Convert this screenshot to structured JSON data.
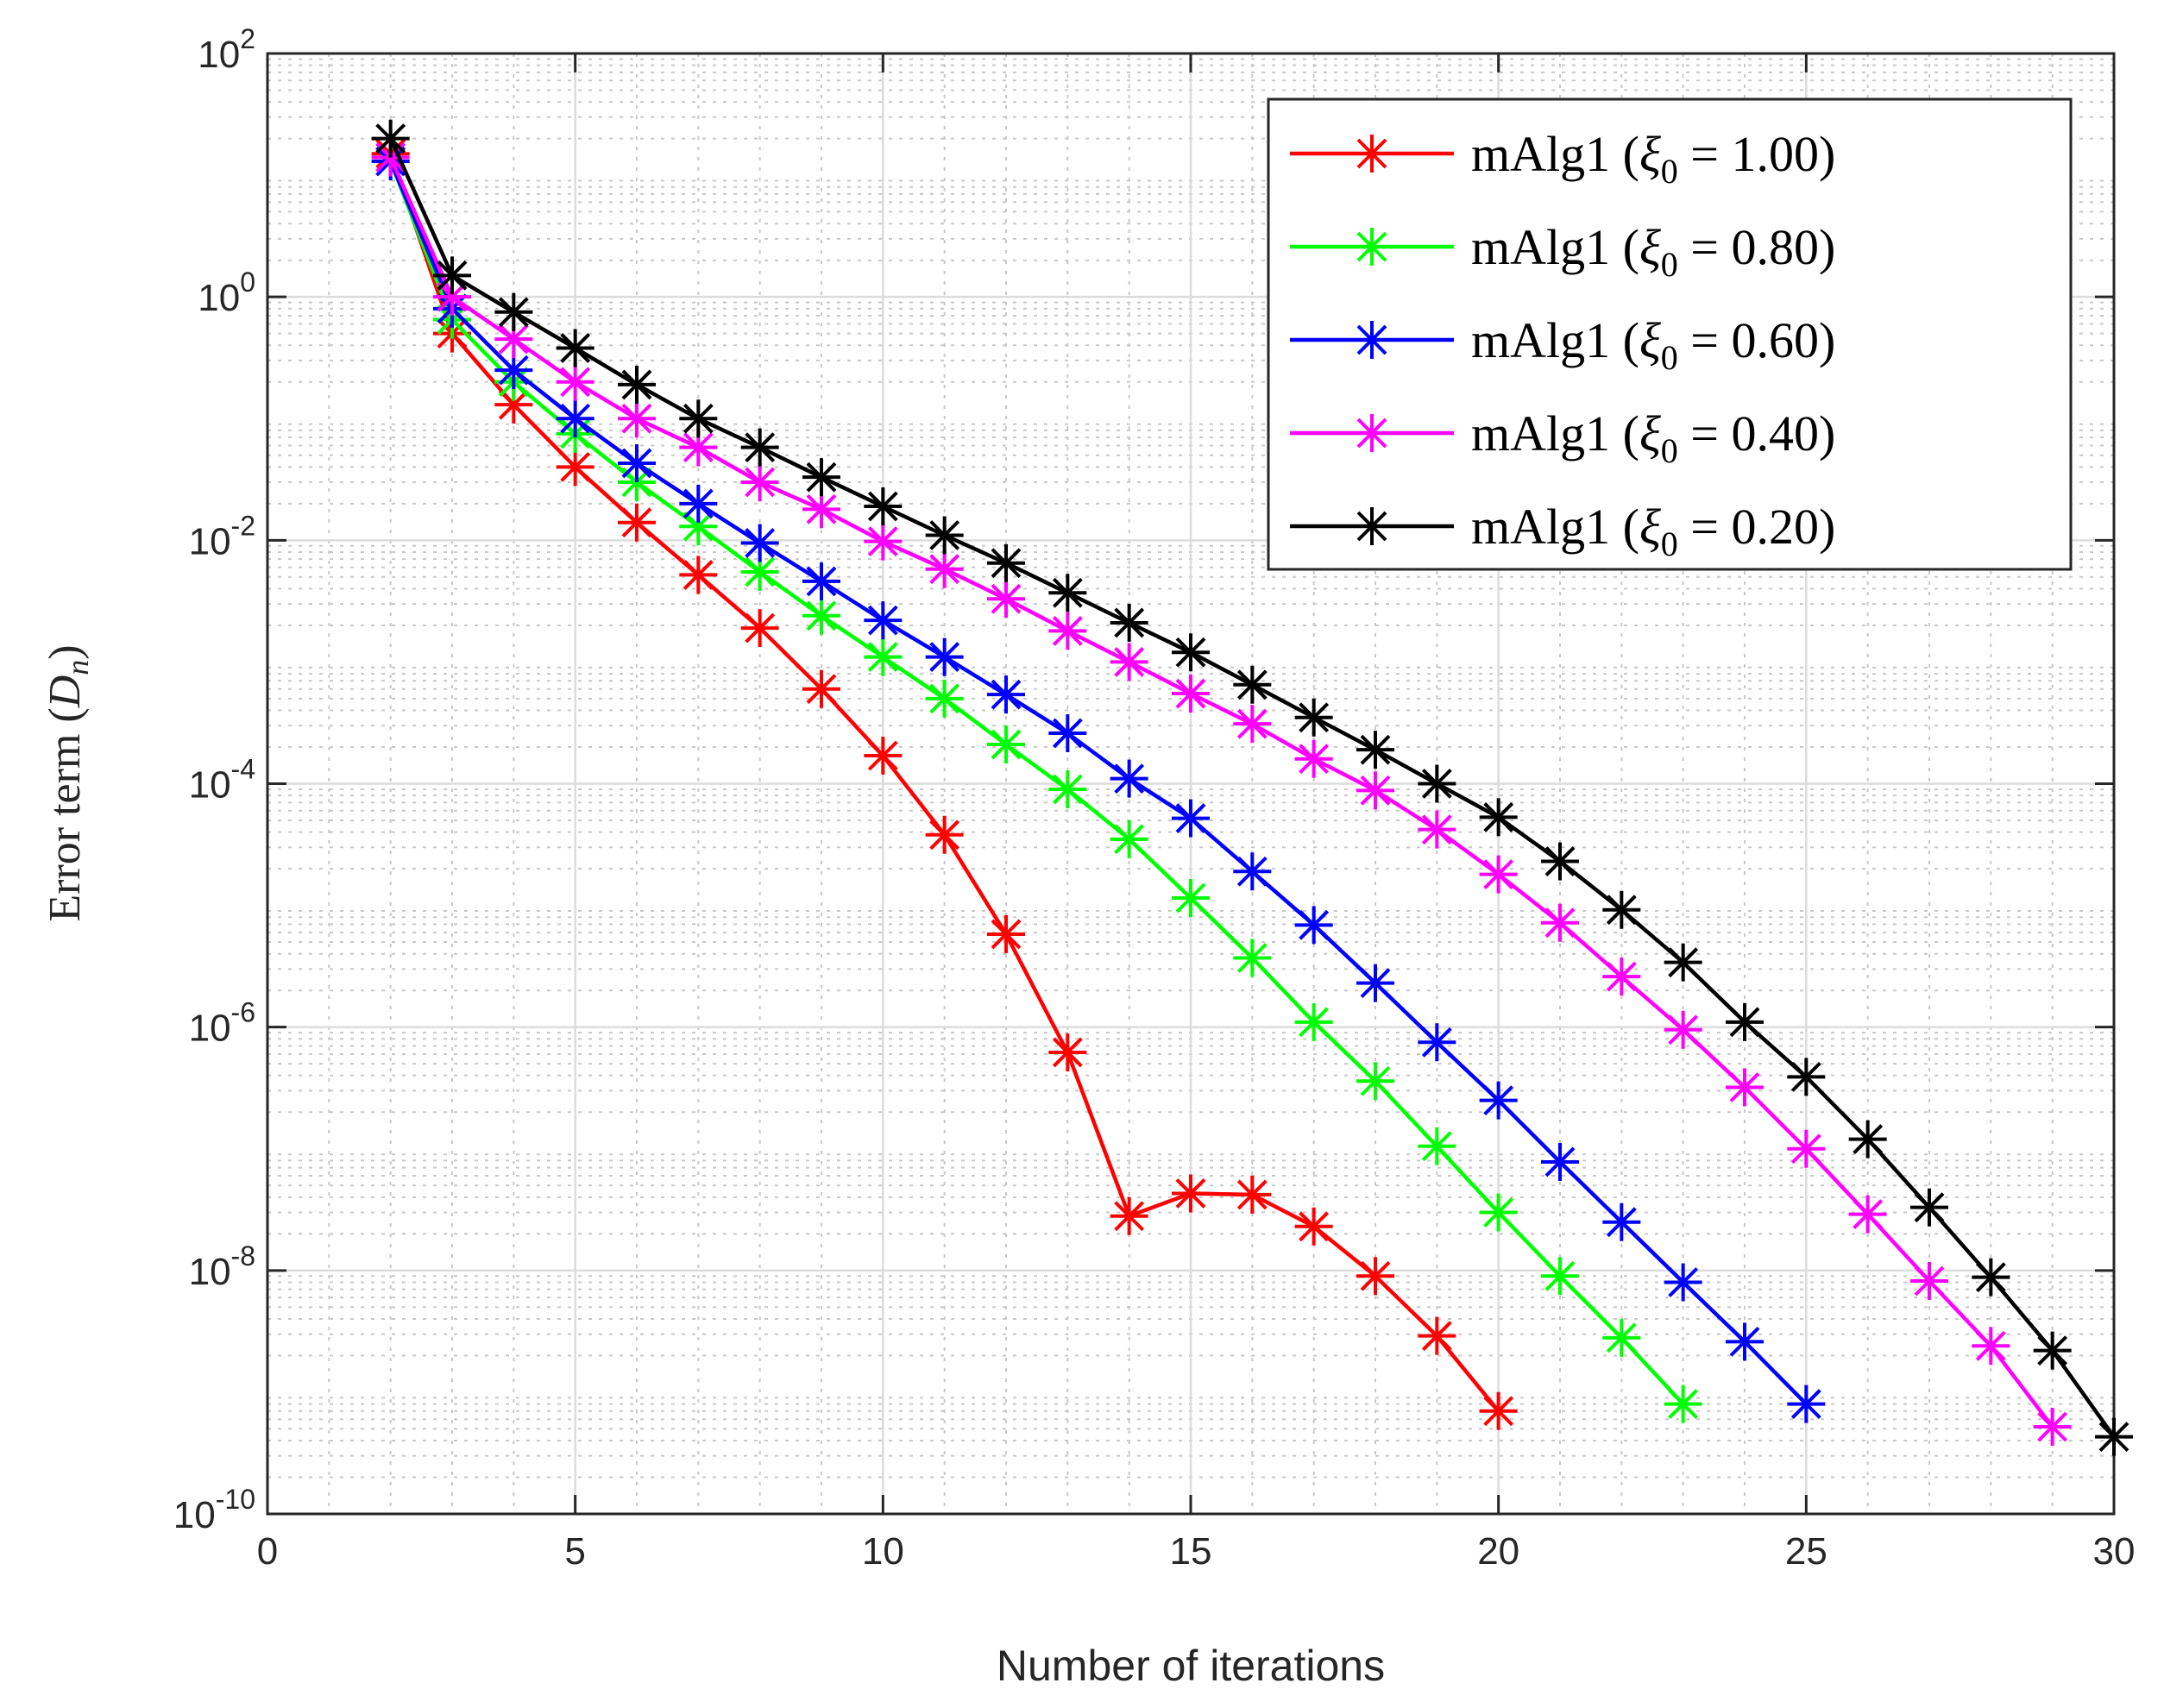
{
  "chart_data": {
    "type": "line",
    "title": "",
    "xlabel": "Number of iterations",
    "ylabel_text": "Error term",
    "ylabel_var": "D",
    "ylabel_sub": "n",
    "xlim": [
      0,
      30
    ],
    "ylim": [
      1e-10,
      100
    ],
    "yscale": "log",
    "grid": true,
    "minor_grid": true,
    "legend_position": "top-right",
    "x_ticks": [
      0,
      5,
      10,
      15,
      20,
      25,
      30
    ],
    "y_ticks": [
      {
        "value": 1e-10,
        "mantissa": "10",
        "exponent": "-10"
      },
      {
        "value": 1e-08,
        "mantissa": "10",
        "exponent": "-8"
      },
      {
        "value": 1e-06,
        "mantissa": "10",
        "exponent": "-6"
      },
      {
        "value": 0.0001,
        "mantissa": "10",
        "exponent": "-4"
      },
      {
        "value": 0.01,
        "mantissa": "10",
        "exponent": "-2"
      },
      {
        "value": 1,
        "mantissa": "10",
        "exponent": "0"
      },
      {
        "value": 100,
        "mantissa": "10",
        "exponent": "2"
      }
    ],
    "series": [
      {
        "label_prefix": "mAlg1 (",
        "label_var": "ξ",
        "label_sub": "0",
        "label_suffix": " = 1.00)",
        "color": "#ff0000",
        "x": [
          2,
          3,
          4,
          5,
          6,
          7,
          8,
          9,
          10,
          11,
          12,
          13,
          14,
          15,
          16,
          17,
          18,
          19,
          20
        ],
        "y": [
          15,
          0.5,
          0.13,
          0.04,
          0.014,
          0.0052,
          0.0019,
          0.0006,
          0.00017,
          3.8e-05,
          5.8e-06,
          6.2e-07,
          2.8e-08,
          4.3e-08,
          4.2e-08,
          2.3e-08,
          9e-09,
          2.9e-09,
          7e-10
        ]
      },
      {
        "label_prefix": "mAlg1 (",
        "label_var": "ξ",
        "label_sub": "0",
        "label_suffix": " = 0.80)",
        "color": "#00ff00",
        "x": [
          2,
          3,
          4,
          5,
          6,
          7,
          8,
          9,
          10,
          11,
          12,
          13,
          14,
          15,
          16,
          17,
          18,
          19,
          20,
          21,
          22,
          23
        ],
        "y": [
          13,
          0.65,
          0.2,
          0.075,
          0.03,
          0.013,
          0.0055,
          0.0024,
          0.0011,
          0.0005,
          0.00021,
          9e-05,
          3.5e-05,
          1.15e-05,
          3.7e-06,
          1.1e-06,
          3.6e-07,
          1.05e-07,
          3e-08,
          9e-09,
          2.8e-09,
          8e-10
        ]
      },
      {
        "label_prefix": "mAlg1 (",
        "label_var": "ξ",
        "label_sub": "0",
        "label_suffix": " = 0.60)",
        "color": "#0000ff",
        "x": [
          2,
          3,
          4,
          5,
          6,
          7,
          8,
          9,
          10,
          11,
          12,
          13,
          14,
          15,
          16,
          17,
          18,
          19,
          20,
          21,
          22,
          23,
          24,
          25
        ],
        "y": [
          13,
          0.8,
          0.25,
          0.1,
          0.043,
          0.02,
          0.0095,
          0.0046,
          0.0022,
          0.0011,
          0.00054,
          0.00026,
          0.00011,
          5.2e-05,
          1.9e-05,
          6.9e-06,
          2.3e-06,
          7.5e-07,
          2.5e-07,
          7.8e-08,
          2.5e-08,
          8e-09,
          2.6e-09,
          8e-10
        ]
      },
      {
        "label_prefix": "mAlg1 (",
        "label_var": "ξ",
        "label_sub": "0",
        "label_suffix": " = 0.40)",
        "color": "#ff00ff",
        "x": [
          2,
          3,
          4,
          5,
          6,
          7,
          8,
          9,
          10,
          11,
          12,
          13,
          14,
          15,
          16,
          17,
          18,
          19,
          20,
          21,
          22,
          23,
          24,
          25,
          26,
          27,
          28,
          29
        ],
        "y": [
          14,
          1.0,
          0.45,
          0.2,
          0.1,
          0.058,
          0.03,
          0.018,
          0.0098,
          0.0058,
          0.0033,
          0.0018,
          0.001,
          0.00055,
          0.00031,
          0.00016,
          8.8e-05,
          4.2e-05,
          1.8e-05,
          7.2e-06,
          2.6e-06,
          9.5e-07,
          3.2e-07,
          1e-07,
          2.9e-08,
          8.2e-09,
          2.4e-09,
          5.2e-10
        ]
      },
      {
        "label_prefix": "mAlg1 (",
        "label_var": "ξ",
        "label_sub": "0",
        "label_suffix": " = 0.20)",
        "color": "#000000",
        "x": [
          2,
          3,
          4,
          5,
          6,
          7,
          8,
          9,
          10,
          11,
          12,
          13,
          14,
          15,
          16,
          17,
          18,
          19,
          20,
          21,
          22,
          23,
          24,
          25,
          26,
          27,
          28,
          29,
          30
        ],
        "y": [
          20,
          1.5,
          0.75,
          0.38,
          0.19,
          0.1,
          0.058,
          0.033,
          0.019,
          0.011,
          0.0065,
          0.0037,
          0.0021,
          0.0012,
          0.00065,
          0.00035,
          0.00019,
          0.0001,
          5.3e-05,
          2.3e-05,
          9.2e-06,
          3.4e-06,
          1.1e-06,
          3.9e-07,
          1.2e-07,
          3.3e-08,
          8.8e-09,
          2.2e-09,
          4.3e-10
        ]
      }
    ]
  }
}
